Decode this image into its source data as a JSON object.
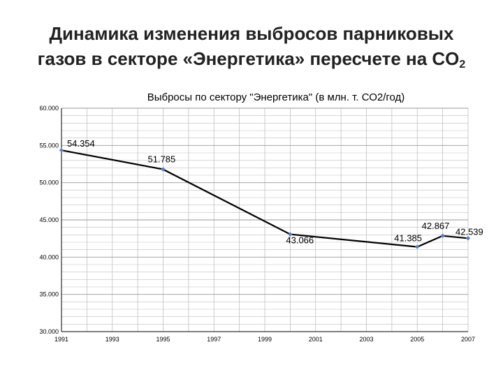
{
  "slide": {
    "title_line1": "Динамика изменения выбросов парниковых",
    "title_line2_main": "газов в секторе «Энергетика» пересчете на  CO",
    "title_line2_sub": "2"
  },
  "chart_data": {
    "type": "line",
    "title": "Выбросы по сектору \"Энергетика\" (в млн. т. СО2/год)",
    "xlabel": "",
    "ylabel": "",
    "xlim": [
      1991,
      2007
    ],
    "ylim": [
      30,
      60
    ],
    "grid": true,
    "x_ticks": [
      1991,
      1993,
      1995,
      1997,
      1999,
      2001,
      2003,
      2005,
      2007
    ],
    "x_tick_labels": [
      "1991",
      "1993",
      "1995",
      "1997",
      "1999",
      "2001",
      "2003",
      "2005",
      "2007"
    ],
    "y_ticks": [
      30,
      35,
      40,
      45,
      50,
      55,
      60
    ],
    "y_tick_labels": [
      "30.000",
      "35.000",
      "40.000",
      "45.000",
      "50.000",
      "55.000",
      "60.000"
    ],
    "series": [
      {
        "x": [
          1991,
          1995,
          2000,
          2005,
          2006,
          2007
        ],
        "values": [
          54.354,
          51.785,
          43.066,
          41.385,
          42.867,
          42.539
        ],
        "labels": [
          "54.354",
          "51.785",
          "43.066",
          "41.385",
          "42.867",
          "42.539"
        ]
      }
    ],
    "colors": {
      "line": "#000000",
      "marker": "#5b7fbf",
      "grid": "#bfbfbf"
    }
  }
}
